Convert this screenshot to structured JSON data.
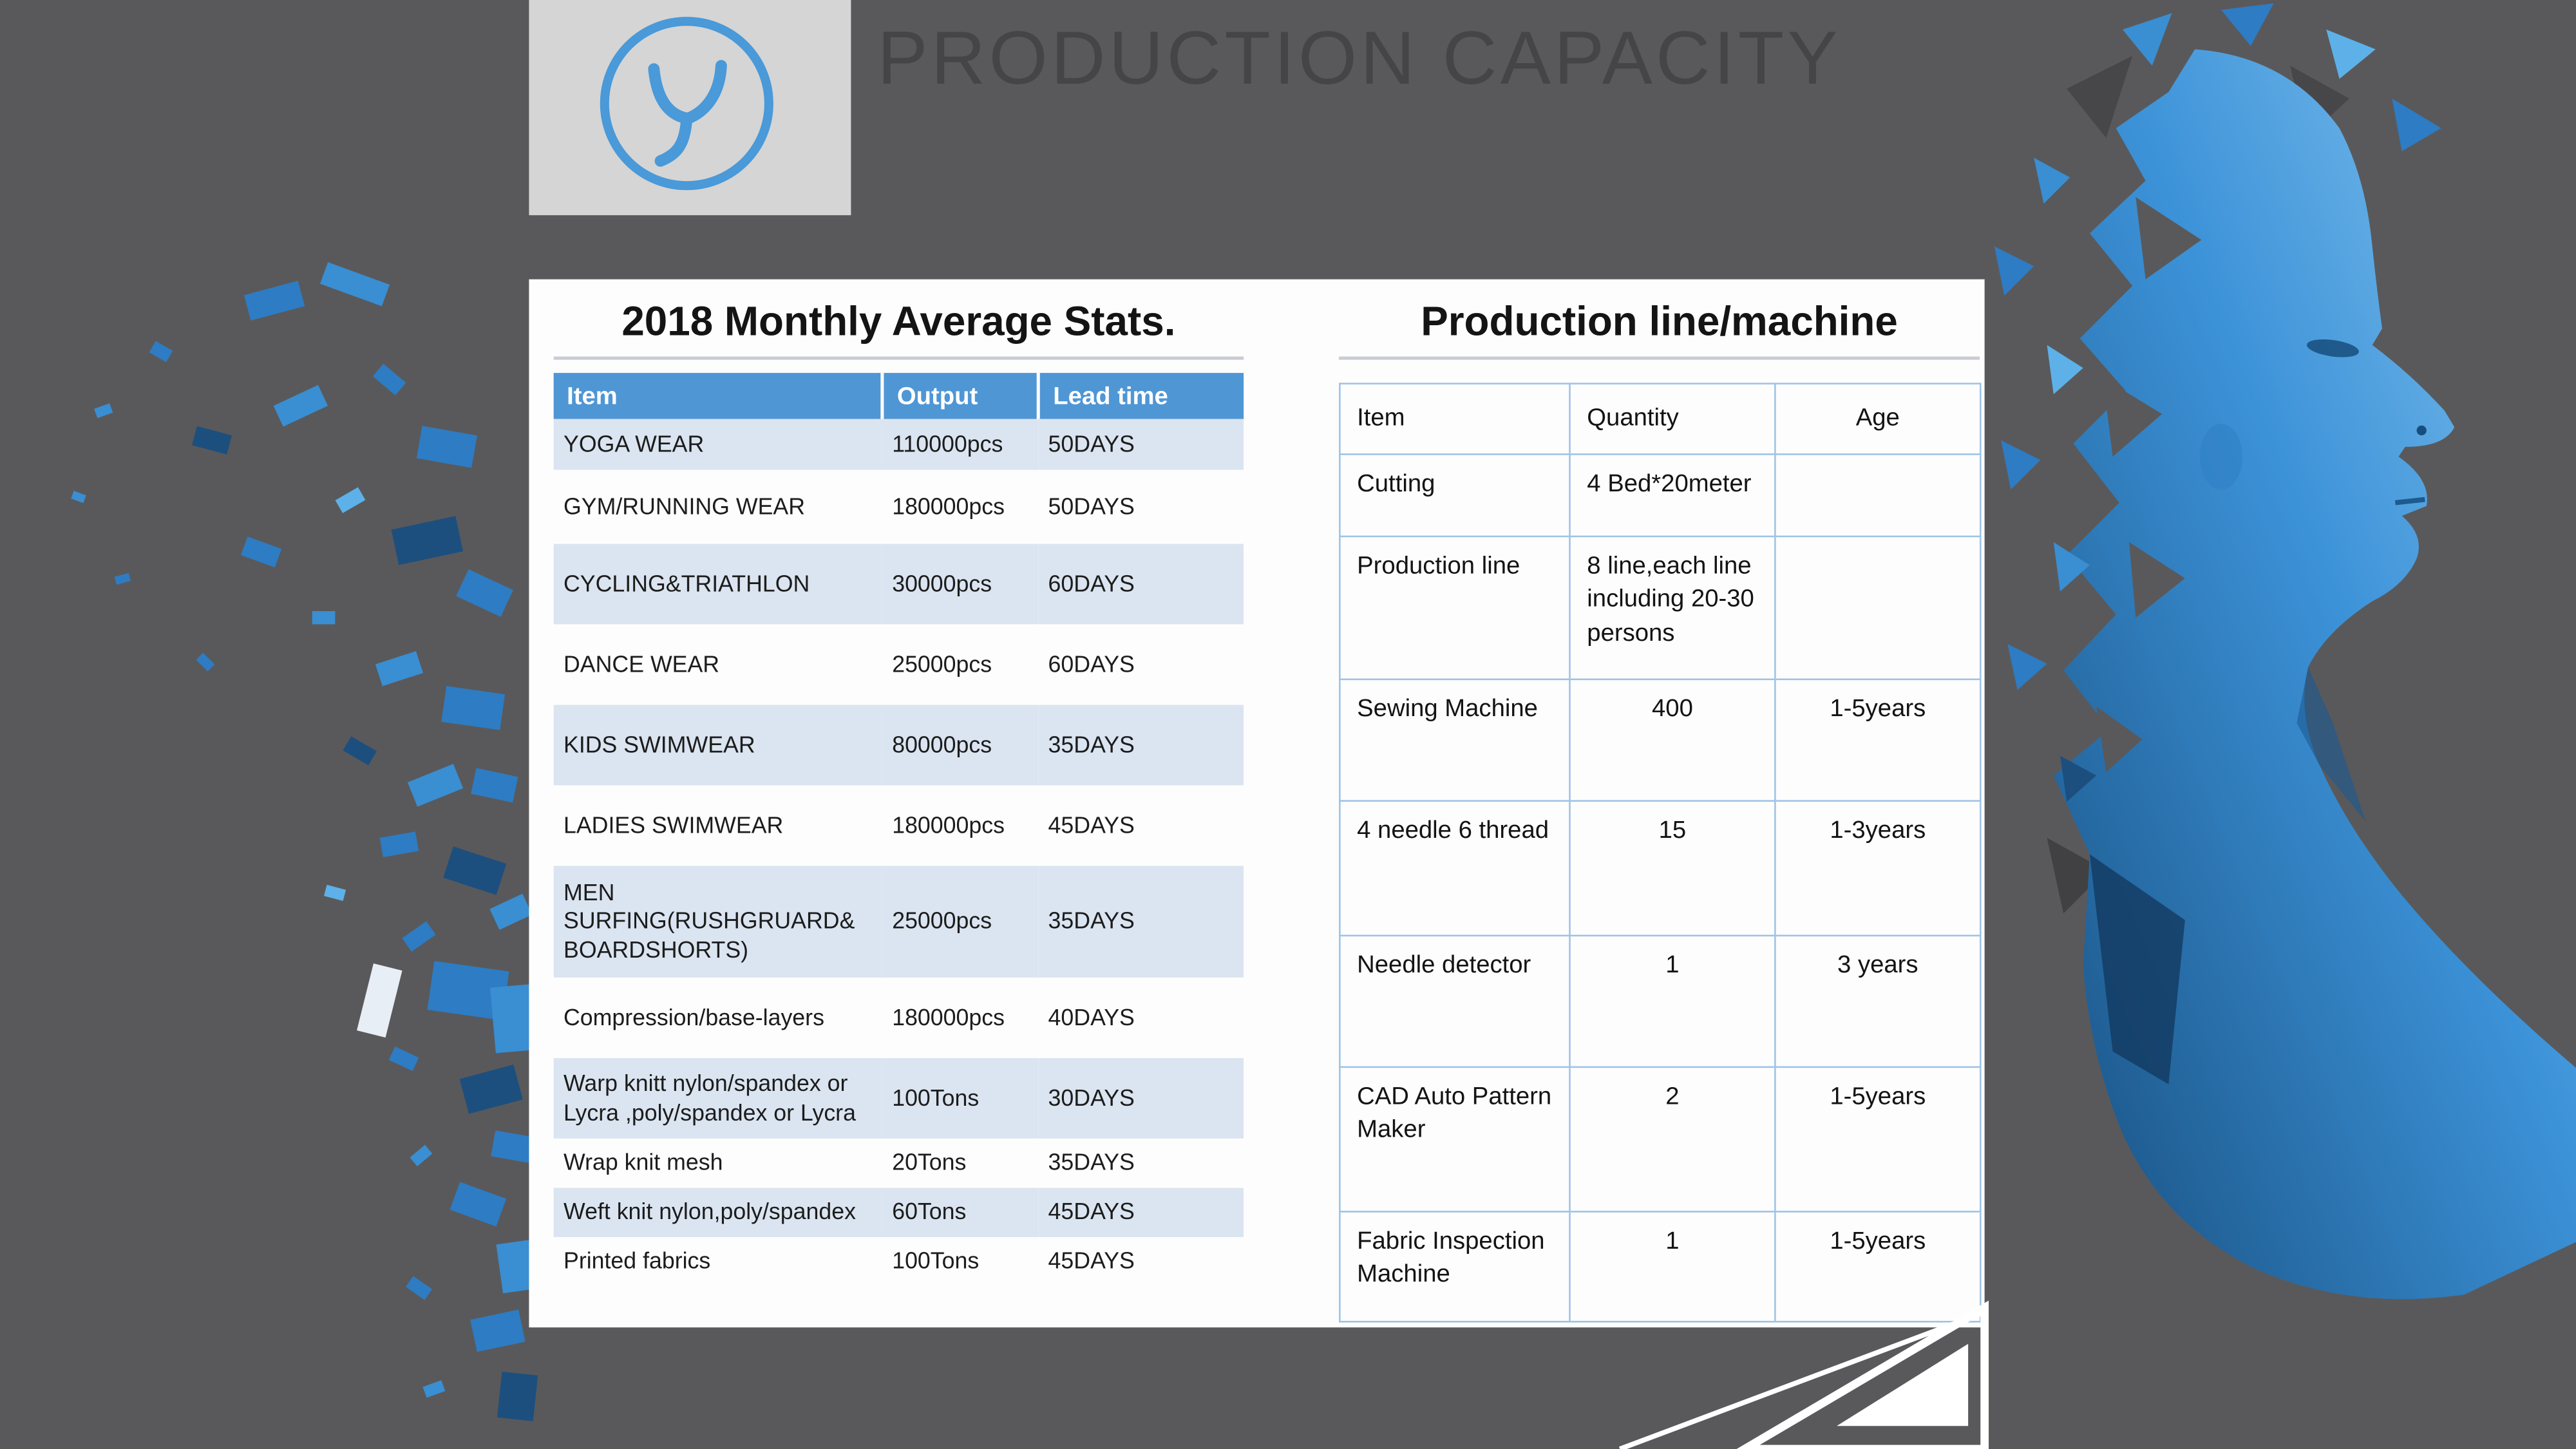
{
  "slide": {
    "title": "PRODUCTION CAPACITY"
  },
  "stats_table": {
    "title": "2018 Monthly Average Stats.",
    "headers": [
      "Item",
      "Output",
      "Lead time"
    ],
    "rows": [
      {
        "item": "YOGA WEAR",
        "output": "110000pcs",
        "lead": "50DAYS"
      },
      {
        "item": "GYM/RUNNING WEAR",
        "output": "180000pcs",
        "lead": "50DAYS"
      },
      {
        "item": "CYCLING&TRIATHLON",
        "output": "30000pcs",
        "lead": "60DAYS"
      },
      {
        "item": "DANCE WEAR",
        "output": "25000pcs",
        "lead": "60DAYS"
      },
      {
        "item": "KIDS SWIMWEAR",
        "output": "80000pcs",
        "lead": "35DAYS"
      },
      {
        "item": "LADIES SWIMWEAR",
        "output": "180000pcs",
        "lead": "45DAYS"
      },
      {
        "item": "MEN SURFING(RUSHGRUARD& BOARDSHORTS)",
        "output": "25000pcs",
        "lead": "35DAYS"
      },
      {
        "item": "Compression/base-layers",
        "output": "180000pcs",
        "lead": "40DAYS"
      },
      {
        "item": "Warp knitt nylon/spandex or Lycra ,poly/spandex or Lycra",
        "output": "100Tons",
        "lead": "30DAYS"
      },
      {
        "item": "Wrap knit mesh",
        "output": "20Tons",
        "lead": "35DAYS"
      },
      {
        "item": "Weft knit nylon,poly/spandex",
        "output": "60Tons",
        "lead": "45DAYS"
      },
      {
        "item": "Printed fabrics",
        "output": "100Tons",
        "lead": "45DAYS"
      }
    ]
  },
  "machine_table": {
    "title": "Production line/machine",
    "headers": [
      "Item",
      "Quantity",
      "Age"
    ],
    "rows": [
      {
        "item": "Cutting",
        "quantity": "4 Bed*20meter",
        "age": ""
      },
      {
        "item": "Production line",
        "quantity": "8 line,each line including 20-30 persons",
        "age": ""
      },
      {
        "item": "Sewing Machine",
        "quantity": "400",
        "age": "1-5years"
      },
      {
        "item": "4 needle 6 thread",
        "quantity": "15",
        "age": "1-3years"
      },
      {
        "item": "Needle detector",
        "quantity": "1",
        "age": "3 years"
      },
      {
        "item": "CAD Auto Pattern Maker",
        "quantity": "2",
        "age": "1-5years"
      },
      {
        "item": "Fabric Inspection Machine",
        "quantity": "1",
        "age": "1-5years"
      }
    ]
  },
  "colors": {
    "background": "#59595b",
    "header_blue": "#4f96d5",
    "band_blue": "#dbe5f1",
    "grid_blue": "#9dc3e6",
    "fragment_blue": "#2e7cc3",
    "logo_blue": "#4a99d8"
  }
}
